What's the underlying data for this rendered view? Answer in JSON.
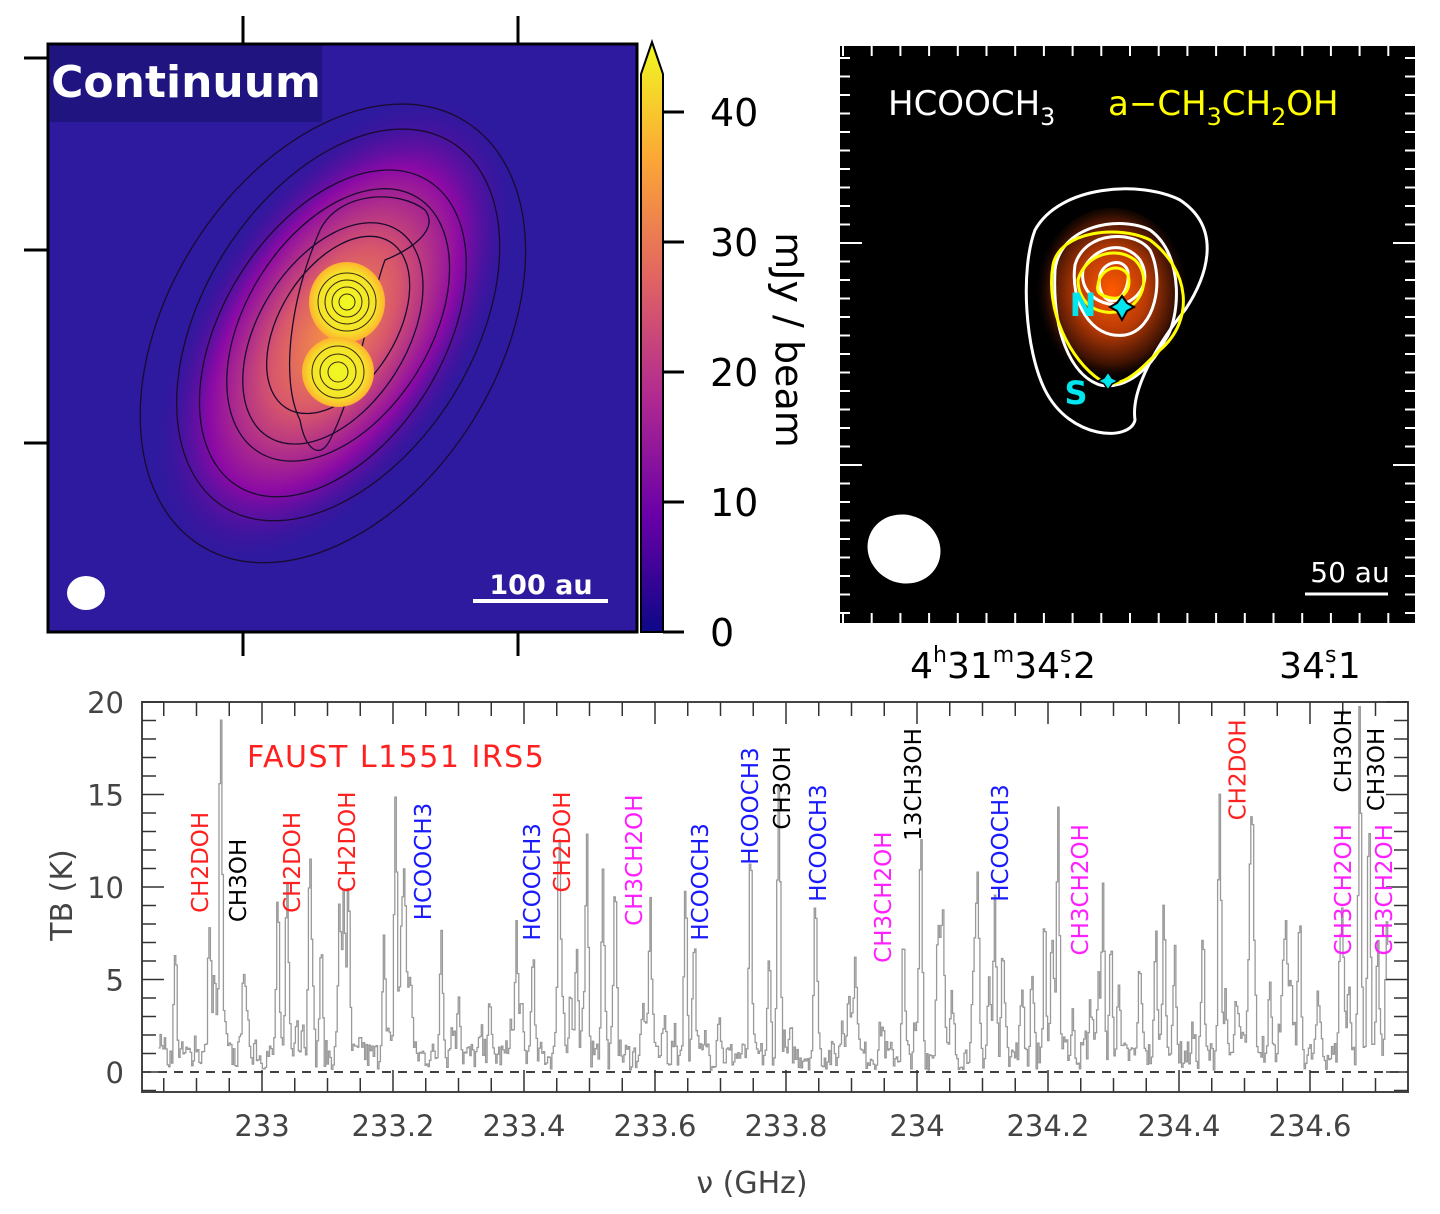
{
  "continuum_panel": {
    "title": "Continuum",
    "scalebar_label": "100 au",
    "colorbar": {
      "label": "mJy / beam",
      "ticks": [
        "0",
        "10",
        "20",
        "30",
        "40"
      ],
      "range": [
        0,
        44
      ],
      "colormap": [
        "#0d0887",
        "#6a00a8",
        "#b12a90",
        "#e16462",
        "#fca636",
        "#f0f921"
      ]
    }
  },
  "molecule_panel": {
    "legend": [
      {
        "text": "HCOOCH3",
        "color": "#ffffff"
      },
      {
        "text": "a−CH3CH2OH",
        "color": "#ffff00"
      }
    ],
    "sources": [
      {
        "label": "N",
        "color": "#00e5ee"
      },
      {
        "label": "S",
        "color": "#00e5ee"
      }
    ],
    "scalebar_label": "50 au",
    "ra_ticks": [
      {
        "h": "4",
        "m": "31",
        "s": "34",
        "frac": ".2"
      },
      {
        "s": "34",
        "frac": ".1"
      }
    ]
  },
  "chart_data": {
    "type": "line",
    "title": "FAUST L1551 IRS5",
    "title_color": "#ff2020",
    "xlabel": "ν (GHz)",
    "ylabel": "TB (K)",
    "xlim": [
      232.817,
      234.75
    ],
    "ylim": [
      0,
      20
    ],
    "xticks": [
      233,
      233.2,
      233.4,
      233.6,
      233.8,
      234,
      234.2,
      234.4,
      234.6
    ],
    "xtick_labels": [
      "233",
      "233.2",
      "233.4",
      "233.6",
      "233.8",
      "234",
      "234.2",
      "234.4",
      "234.6"
    ],
    "yticks": [
      0,
      5,
      10,
      15,
      20
    ],
    "ytick_labels": [
      "0",
      "5",
      "10",
      "15",
      "20"
    ],
    "baseline": 0,
    "line_color": "#999999",
    "peaks": [
      {
        "x": 232.919,
        "y": 7.6
      },
      {
        "x": 232.936,
        "y": 18.0
      },
      {
        "x": 233.023,
        "y": 8.4
      },
      {
        "x": 233.072,
        "y": 10.9
      },
      {
        "x": 233.124,
        "y": 8.9
      },
      {
        "x": 233.131,
        "y": 8.8
      },
      {
        "x": 233.203,
        "y": 13.3
      },
      {
        "x": 233.217,
        "y": 9.0
      },
      {
        "x": 233.388,
        "y": 7.1
      },
      {
        "x": 233.452,
        "y": 8.6
      },
      {
        "x": 233.495,
        "y": 9.0
      },
      {
        "x": 233.519,
        "y": 7.8
      },
      {
        "x": 233.592,
        "y": 8.2
      },
      {
        "x": 233.646,
        "y": 8.6
      },
      {
        "x": 233.745,
        "y": 10.0
      },
      {
        "x": 233.788,
        "y": 11.9
      },
      {
        "x": 233.844,
        "y": 7.8
      },
      {
        "x": 234.005,
        "y": 11.9
      },
      {
        "x": 234.118,
        "y": 8.3
      },
      {
        "x": 234.194,
        "y": 7.2
      },
      {
        "x": 234.283,
        "y": 7.0
      },
      {
        "x": 234.376,
        "y": 8.0
      },
      {
        "x": 234.461,
        "y": 14.4
      },
      {
        "x": 234.675,
        "y": 18.5
      },
      {
        "x": 234.689,
        "y": 13.4
      }
    ],
    "annotations": [
      {
        "text": "CH2DOH",
        "color": "#ff2020",
        "x": 232.905,
        "y": 8.6
      },
      {
        "text": "CH3OH",
        "color": "#000000",
        "x": 232.963,
        "y": 8.1
      },
      {
        "text": "CH2DOH",
        "color": "#ff2020",
        "x": 233.046,
        "y": 8.6
      },
      {
        "text": "CH2DOH",
        "color": "#ff2020",
        "x": 233.13,
        "y": 9.7
      },
      {
        "text": "HCOOCH3",
        "color": "#1a1aff",
        "x": 233.246,
        "y": 8.2
      },
      {
        "text": "HCOOCH3",
        "color": "#1a1aff",
        "x": 233.412,
        "y": 7.1
      },
      {
        "text": "CH2DOH",
        "color": "#ff2020",
        "x": 233.458,
        "y": 9.7
      },
      {
        "text": "CH3CH2OH",
        "color": "#ff20ff",
        "x": 233.568,
        "y": 7.9
      },
      {
        "text": "HCOOCH3",
        "color": "#1a1aff",
        "x": 233.669,
        "y": 7.1
      },
      {
        "text": "HCOOCH3",
        "color": "#1a1aff",
        "x": 233.745,
        "y": 11.2
      },
      {
        "text": "CH3OH",
        "color": "#000000",
        "x": 233.794,
        "y": 13.1
      },
      {
        "text": "HCOOCH3",
        "color": "#1a1aff",
        "x": 233.849,
        "y": 9.2
      },
      {
        "text": "CH3CH2OH",
        "color": "#ff20ff",
        "x": 233.948,
        "y": 5.9
      },
      {
        "text": "13CH3OH",
        "color": "#000000",
        "x": 233.994,
        "y": 12.5
      },
      {
        "text": "HCOOCH3",
        "color": "#1a1aff",
        "x": 234.127,
        "y": 9.2
      },
      {
        "text": "CH3CH2OH",
        "color": "#ff20ff",
        "x": 234.249,
        "y": 6.3
      },
      {
        "text": "CH2DOH",
        "color": "#ff2020",
        "x": 234.489,
        "y": 13.6
      },
      {
        "text": "CH3OH",
        "color": "#000000",
        "x": 234.65,
        "y": 15.1
      },
      {
        "text": "CH3OH",
        "color": "#000000",
        "x": 234.701,
        "y": 14.1
      },
      {
        "text": "CH3CH2OH",
        "color": "#ff20ff",
        "x": 234.65,
        "y": 6.3
      },
      {
        "text": "CH3CH2OH",
        "color": "#ff20ff",
        "x": 234.713,
        "y": 6.3
      }
    ],
    "grid": false
  }
}
